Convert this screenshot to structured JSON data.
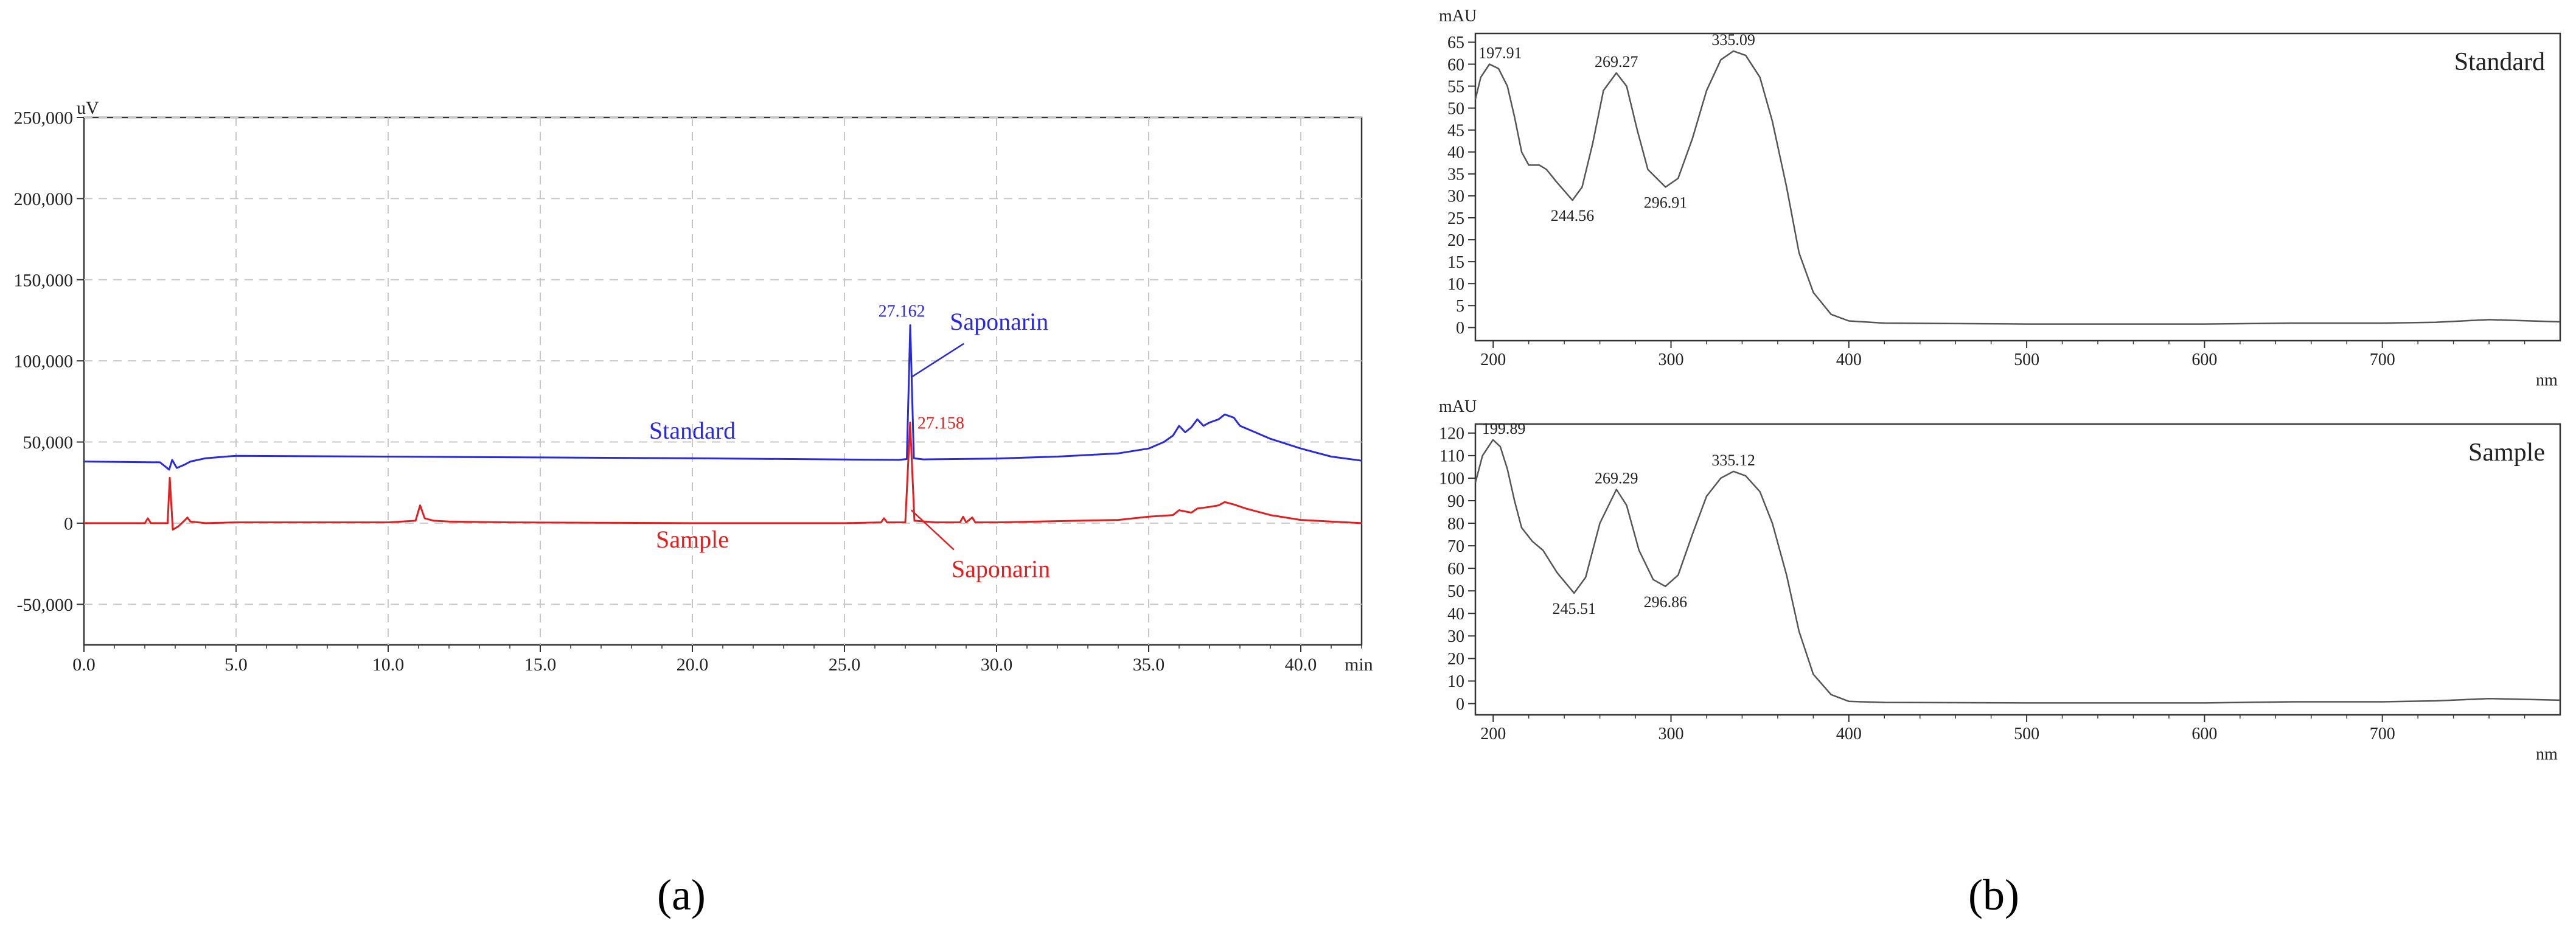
{
  "panel_labels": {
    "a": "(a)",
    "b": "(b)"
  },
  "chart_data": [
    {
      "id": "chromatogram",
      "type": "line",
      "xlabel": "min",
      "ylabel": "uV",
      "xlim": [
        0,
        42
      ],
      "ylim": [
        -75000,
        250000
      ],
      "x_ticks": [
        0,
        5,
        10,
        15,
        20,
        25,
        30,
        35,
        40
      ],
      "x_tick_labels": [
        "0.0",
        "5.0",
        "10.0",
        "15.0",
        "20.0",
        "25.0",
        "30.0",
        "35.0",
        "40.0"
      ],
      "y_ticks": [
        -50000,
        0,
        50000,
        100000,
        150000,
        200000,
        250000
      ],
      "y_tick_labels": [
        "-50,000",
        "0",
        "50,000",
        "100,000",
        "150,000",
        "200,000",
        "250,000"
      ],
      "grid": true,
      "series": [
        {
          "name": "Standard",
          "color": "#2a2ad8",
          "points": [
            [
              0,
              38000
            ],
            [
              2.5,
              37500
            ],
            [
              2.8,
              33000
            ],
            [
              2.9,
              39000
            ],
            [
              3.05,
              34000
            ],
            [
              3.3,
              36000
            ],
            [
              3.5,
              38000
            ],
            [
              4.0,
              40000
            ],
            [
              5.0,
              41500
            ],
            [
              10.0,
              41000
            ],
            [
              15.0,
              40500
            ],
            [
              20.0,
              40000
            ],
            [
              25.0,
              39200
            ],
            [
              26.8,
              39000
            ],
            [
              27.05,
              39500
            ],
            [
              27.162,
              122000
            ],
            [
              27.28,
              40000
            ],
            [
              27.6,
              39300
            ],
            [
              30.0,
              39800
            ],
            [
              32.0,
              41000
            ],
            [
              34.0,
              43000
            ],
            [
              35.0,
              46000
            ],
            [
              35.5,
              50000
            ],
            [
              35.8,
              54000
            ],
            [
              36.0,
              60000
            ],
            [
              36.2,
              56000
            ],
            [
              36.4,
              59000
            ],
            [
              36.6,
              64000
            ],
            [
              36.8,
              60000
            ],
            [
              37.0,
              62000
            ],
            [
              37.3,
              64000
            ],
            [
              37.5,
              67000
            ],
            [
              37.8,
              65000
            ],
            [
              38.0,
              60000
            ],
            [
              38.5,
              56000
            ],
            [
              39.0,
              52000
            ],
            [
              40.0,
              46000
            ],
            [
              41.0,
              41000
            ],
            [
              42.0,
              38500
            ]
          ]
        },
        {
          "name": "Sample",
          "color": "#e02020",
          "points": [
            [
              0,
              0
            ],
            [
              2.0,
              0
            ],
            [
              2.1,
              3000
            ],
            [
              2.2,
              0
            ],
            [
              2.75,
              0
            ],
            [
              2.82,
              28000
            ],
            [
              2.92,
              -4000
            ],
            [
              3.1,
              -2000
            ],
            [
              3.3,
              1500
            ],
            [
              3.4,
              3500
            ],
            [
              3.5,
              1000
            ],
            [
              4.0,
              0
            ],
            [
              5.0,
              500
            ],
            [
              10.0,
              500
            ],
            [
              10.9,
              1500
            ],
            [
              11.05,
              11000
            ],
            [
              11.2,
              3000
            ],
            [
              11.5,
              1500
            ],
            [
              12.0,
              1000
            ],
            [
              14.0,
              500
            ],
            [
              20.0,
              0
            ],
            [
              25.0,
              0
            ],
            [
              26.2,
              500
            ],
            [
              26.3,
              3000
            ],
            [
              26.4,
              500
            ],
            [
              27.0,
              500
            ],
            [
              27.158,
              62000
            ],
            [
              27.3,
              1500
            ],
            [
              28.0,
              500
            ],
            [
              28.8,
              500
            ],
            [
              28.9,
              4000
            ],
            [
              29.0,
              500
            ],
            [
              29.2,
              3500
            ],
            [
              29.3,
              500
            ],
            [
              30.0,
              500
            ],
            [
              34.0,
              2000
            ],
            [
              35.0,
              4000
            ],
            [
              35.8,
              5000
            ],
            [
              36.0,
              8000
            ],
            [
              36.4,
              6500
            ],
            [
              36.6,
              9000
            ],
            [
              37.0,
              10000
            ],
            [
              37.3,
              11000
            ],
            [
              37.5,
              13000
            ],
            [
              37.8,
              11500
            ],
            [
              38.2,
              9000
            ],
            [
              39.0,
              5000
            ],
            [
              40.0,
              2000
            ],
            [
              42.0,
              0
            ]
          ]
        }
      ],
      "annotations": [
        {
          "text": "27.162",
          "x": 27.162,
          "y": 122000,
          "color": "#2a2ad8",
          "kind": "peak"
        },
        {
          "text": "27.158",
          "x": 27.158,
          "y": 62000,
          "color": "#e02020",
          "kind": "peak"
        },
        {
          "text": "Saponarin",
          "x": 27.162,
          "y": 90000,
          "color": "#2a2ad8",
          "kind": "callout"
        },
        {
          "text": "Saponarin",
          "x": 27.158,
          "y": 8000,
          "color": "#e02020",
          "kind": "callout"
        },
        {
          "text": "Standard",
          "x": 20.0,
          "y": 52000,
          "color": "#2a2ad8",
          "kind": "series-label"
        },
        {
          "text": "Sample",
          "x": 20.0,
          "y": -15000,
          "color": "#e02020",
          "kind": "series-label"
        }
      ]
    },
    {
      "id": "uv-standard",
      "type": "line",
      "title": "Standard",
      "xlabel": "nm",
      "ylabel": "mAU",
      "xlim": [
        190,
        800
      ],
      "ylim": [
        -3,
        67
      ],
      "x_ticks": [
        200,
        300,
        400,
        500,
        600,
        700
      ],
      "x_tick_labels": [
        "200",
        "300",
        "400",
        "500",
        "600",
        "700"
      ],
      "y_ticks": [
        0,
        5,
        10,
        15,
        20,
        25,
        30,
        35,
        40,
        45,
        50,
        55,
        60,
        65
      ],
      "y_tick_labels": [
        "0",
        "5",
        "10",
        "15",
        "20",
        "25",
        "30",
        "35",
        "40",
        "45",
        "50",
        "55",
        "60",
        "65"
      ],
      "grid": false,
      "series": [
        {
          "name": "Standard",
          "color": "#555555",
          "points": [
            [
              190,
              52
            ],
            [
              193,
              57
            ],
            [
              197.91,
              60
            ],
            [
              203,
              59
            ],
            [
              208,
              55
            ],
            [
              212,
              48
            ],
            [
              216,
              40
            ],
            [
              220,
              37
            ],
            [
              226,
              37
            ],
            [
              230,
              36
            ],
            [
              236,
              33
            ],
            [
              244.56,
              29
            ],
            [
              250,
              32
            ],
            [
              256,
              42
            ],
            [
              262,
              54
            ],
            [
              269.27,
              58
            ],
            [
              275,
              55
            ],
            [
              281,
              45
            ],
            [
              287,
              36
            ],
            [
              296.91,
              32
            ],
            [
              304,
              34
            ],
            [
              312,
              43
            ],
            [
              320,
              54
            ],
            [
              328,
              61
            ],
            [
              335.09,
              63
            ],
            [
              342,
              62
            ],
            [
              350,
              57
            ],
            [
              357,
              47
            ],
            [
              365,
              32
            ],
            [
              372,
              17
            ],
            [
              380,
              8
            ],
            [
              390,
              3
            ],
            [
              400,
              1.5
            ],
            [
              420,
              1
            ],
            [
              500,
              0.8
            ],
            [
              600,
              0.8
            ],
            [
              650,
              1
            ],
            [
              700,
              1
            ],
            [
              730,
              1.2
            ],
            [
              760,
              1.8
            ],
            [
              800,
              1.3
            ]
          ]
        }
      ],
      "annotations": [
        {
          "text": "197.91",
          "x": 197.91,
          "y": 60,
          "kind": "peak"
        },
        {
          "text": "269.27",
          "x": 269.27,
          "y": 58,
          "kind": "peak"
        },
        {
          "text": "335.09",
          "x": 335.09,
          "y": 63,
          "kind": "peak"
        },
        {
          "text": "244.56",
          "x": 244.56,
          "y": 29,
          "kind": "valley"
        },
        {
          "text": "296.91",
          "x": 296.91,
          "y": 32,
          "kind": "valley"
        }
      ]
    },
    {
      "id": "uv-sample",
      "type": "line",
      "title": "Sample",
      "xlabel": "nm",
      "ylabel": "mAU",
      "xlim": [
        190,
        800
      ],
      "ylim": [
        -5,
        124
      ],
      "x_ticks": [
        200,
        300,
        400,
        500,
        600,
        700
      ],
      "x_tick_labels": [
        "200",
        "300",
        "400",
        "500",
        "600",
        "700"
      ],
      "y_ticks": [
        0,
        10,
        20,
        30,
        40,
        50,
        60,
        70,
        80,
        90,
        100,
        110,
        120
      ],
      "y_tick_labels": [
        "0",
        "10",
        "20",
        "30",
        "40",
        "50",
        "60",
        "70",
        "80",
        "90",
        "100",
        "110",
        "120"
      ],
      "grid": false,
      "series": [
        {
          "name": "Sample",
          "color": "#555555",
          "points": [
            [
              190,
              98
            ],
            [
              194,
              110
            ],
            [
              199.89,
              117
            ],
            [
              204,
              114
            ],
            [
              208,
              104
            ],
            [
              212,
              90
            ],
            [
              216,
              78
            ],
            [
              222,
              72
            ],
            [
              228,
              68
            ],
            [
              236,
              58
            ],
            [
              245.51,
              49
            ],
            [
              252,
              56
            ],
            [
              260,
              80
            ],
            [
              269.29,
              95
            ],
            [
              275,
              88
            ],
            [
              282,
              68
            ],
            [
              290,
              55
            ],
            [
              296.86,
              52
            ],
            [
              304,
              57
            ],
            [
              312,
              75
            ],
            [
              320,
              92
            ],
            [
              328,
              100
            ],
            [
              335.12,
              103
            ],
            [
              342,
              101
            ],
            [
              350,
              94
            ],
            [
              357,
              80
            ],
            [
              365,
              57
            ],
            [
              372,
              32
            ],
            [
              380,
              13
            ],
            [
              390,
              4
            ],
            [
              400,
              1
            ],
            [
              420,
              0.5
            ],
            [
              500,
              0.3
            ],
            [
              600,
              0.3
            ],
            [
              650,
              0.8
            ],
            [
              700,
              0.8
            ],
            [
              730,
              1.2
            ],
            [
              760,
              2.2
            ],
            [
              800,
              1.5
            ]
          ]
        }
      ],
      "annotations": [
        {
          "text": "199.89",
          "x": 199.89,
          "y": 117,
          "kind": "peak"
        },
        {
          "text": "269.29",
          "x": 269.29,
          "y": 95,
          "kind": "peak"
        },
        {
          "text": "335.12",
          "x": 335.12,
          "y": 103,
          "kind": "peak"
        },
        {
          "text": "245.51",
          "x": 245.51,
          "y": 49,
          "kind": "valley"
        },
        {
          "text": "296.86",
          "x": 296.86,
          "y": 52,
          "kind": "valley"
        }
      ]
    }
  ]
}
